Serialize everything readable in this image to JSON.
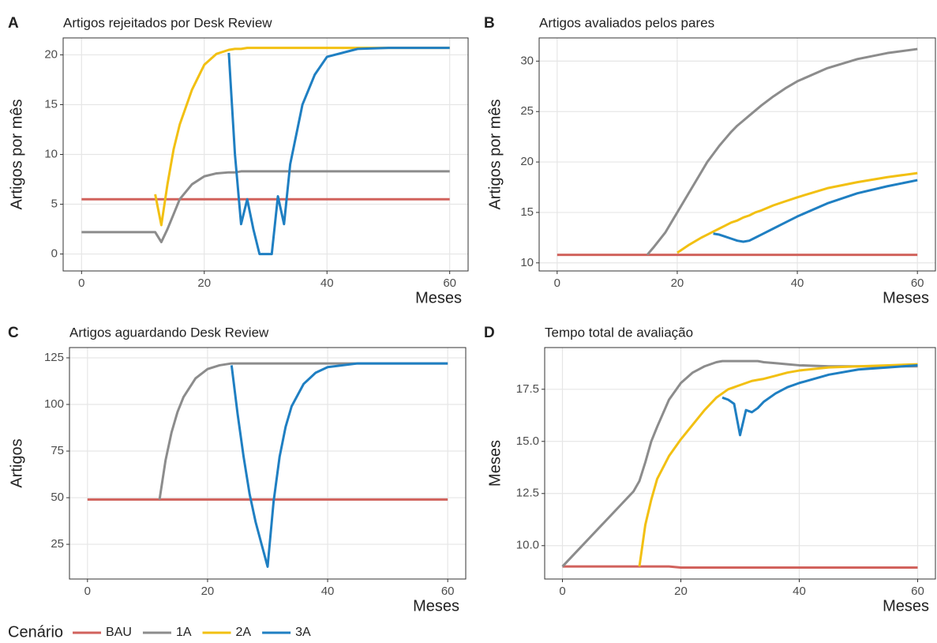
{
  "legend": {
    "title": "Cenário",
    "items": [
      {
        "name": "BAU",
        "color": "#d1625c"
      },
      {
        "name": "1A",
        "color": "#8c8c8c"
      },
      {
        "name": "2A",
        "color": "#f2c012"
      },
      {
        "name": "3A",
        "color": "#1f7fc2"
      }
    ]
  },
  "chart_data": [
    {
      "type": "line",
      "letter": "A",
      "title": "Artigos rejeitados por Desk Review",
      "xlabel": "Meses",
      "ylabel": "Artigos por mês",
      "x": [
        0,
        5,
        10,
        12,
        13,
        14,
        15,
        16,
        18,
        20,
        22,
        24,
        25,
        26,
        27,
        28,
        29,
        30,
        31,
        32,
        33,
        34,
        36,
        38,
        40,
        45,
        50,
        55,
        60
      ],
      "xlim": [
        -3,
        63
      ],
      "xticks": [
        0,
        20,
        40,
        60
      ],
      "ylim": [
        -1.7,
        21.7
      ],
      "yticks": [
        0,
        5,
        10,
        15,
        20
      ],
      "grid": true,
      "series": [
        {
          "name": "BAU",
          "color": "#d1625c",
          "values": [
            5.5,
            5.5,
            5.5,
            5.5,
            5.5,
            5.5,
            5.5,
            5.5,
            5.5,
            5.5,
            5.5,
            5.5,
            5.5,
            5.5,
            5.5,
            5.5,
            5.5,
            5.5,
            5.5,
            5.5,
            5.5,
            5.5,
            5.5,
            5.5,
            5.5,
            5.5,
            5.5,
            5.5,
            5.5
          ]
        },
        {
          "name": "1A",
          "color": "#8c8c8c",
          "values": [
            2.2,
            2.2,
            2.2,
            2.2,
            1.2,
            2.5,
            4,
            5.5,
            7,
            7.8,
            8.1,
            8.2,
            8.2,
            8.3,
            8.3,
            8.3,
            8.3,
            8.3,
            8.3,
            8.3,
            8.3,
            8.3,
            8.3,
            8.3,
            8.3,
            8.3,
            8.3,
            8.3,
            8.3
          ]
        },
        {
          "name": "2A",
          "color": "#f2c012",
          "values": [
            null,
            null,
            null,
            6,
            2.9,
            7,
            10.5,
            13,
            16.5,
            19,
            20.1,
            20.5,
            20.6,
            20.6,
            20.7,
            20.7,
            20.7,
            20.7,
            20.7,
            20.7,
            20.7,
            20.7,
            20.7,
            20.7,
            20.7,
            20.7,
            20.7,
            20.7,
            20.7
          ]
        },
        {
          "name": "3A",
          "color": "#1f7fc2",
          "values": [
            null,
            null,
            null,
            null,
            null,
            null,
            null,
            null,
            null,
            null,
            null,
            20.2,
            10,
            3,
            5.5,
            2.5,
            0,
            0,
            0,
            5.8,
            3,
            9,
            15,
            18,
            19.8,
            20.6,
            20.7,
            20.7,
            20.7
          ]
        }
      ]
    },
    {
      "type": "line",
      "letter": "B",
      "title": "Artigos avaliados pelos pares",
      "xlabel": "Meses",
      "ylabel": "Artigos por mês",
      "x": [
        0,
        5,
        10,
        12,
        13,
        14,
        15,
        16,
        18,
        20,
        22,
        24,
        25,
        26,
        27,
        28,
        29,
        30,
        31,
        32,
        33,
        34,
        36,
        38,
        40,
        45,
        50,
        55,
        60
      ],
      "xlim": [
        -3,
        63
      ],
      "xticks": [
        0,
        20,
        40,
        60
      ],
      "ylim": [
        9.2,
        32.3
      ],
      "yticks": [
        10,
        15,
        20,
        25,
        30
      ],
      "grid": true,
      "series": [
        {
          "name": "BAU",
          "color": "#d1625c",
          "values": [
            10.8,
            10.8,
            10.8,
            10.8,
            10.8,
            10.8,
            10.8,
            10.8,
            10.8,
            10.8,
            10.8,
            10.8,
            10.8,
            10.8,
            10.8,
            10.8,
            10.8,
            10.8,
            10.8,
            10.8,
            10.8,
            10.8,
            10.8,
            10.8,
            10.8,
            10.8,
            10.8,
            10.8,
            10.8
          ]
        },
        {
          "name": "1A",
          "color": "#8c8c8c",
          "values": [
            null,
            null,
            null,
            null,
            null,
            null,
            10.8,
            11.5,
            13,
            15,
            17,
            19,
            20,
            20.8,
            21.6,
            22.3,
            23,
            23.6,
            24.1,
            24.6,
            25.1,
            25.6,
            26.5,
            27.3,
            28,
            29.3,
            30.2,
            30.8,
            31.2
          ]
        },
        {
          "name": "2A",
          "color": "#f2c012",
          "values": [
            null,
            null,
            null,
            null,
            null,
            null,
            null,
            null,
            null,
            11,
            11.8,
            12.5,
            12.8,
            13.1,
            13.4,
            13.7,
            14,
            14.2,
            14.5,
            14.7,
            15,
            15.2,
            15.7,
            16.1,
            16.5,
            17.4,
            18,
            18.5,
            18.9
          ]
        },
        {
          "name": "3A",
          "color": "#1f7fc2",
          "values": [
            null,
            null,
            null,
            null,
            null,
            null,
            null,
            null,
            null,
            null,
            null,
            null,
            null,
            12.9,
            12.8,
            12.6,
            12.4,
            12.2,
            12.1,
            12.2,
            12.5,
            12.8,
            13.4,
            14,
            14.6,
            15.9,
            16.9,
            17.6,
            18.2
          ]
        }
      ]
    },
    {
      "type": "line",
      "letter": "C",
      "title": "Artigos aguardando Desk Review",
      "xlabel": "Meses",
      "ylabel": "Artigos",
      "x": [
        0,
        5,
        10,
        12,
        13,
        14,
        15,
        16,
        18,
        20,
        22,
        24,
        25,
        26,
        27,
        28,
        29,
        30,
        31,
        32,
        33,
        34,
        36,
        38,
        40,
        45,
        50,
        55,
        60
      ],
      "xlim": [
        -3,
        63
      ],
      "xticks": [
        0,
        20,
        40,
        60
      ],
      "ylim": [
        6.4,
        130.5
      ],
      "yticks": [
        25,
        50,
        75,
        100,
        125
      ],
      "grid": true,
      "series": [
        {
          "name": "BAU",
          "color": "#d1625c",
          "values": [
            49,
            49,
            49,
            49,
            49,
            49,
            49,
            49,
            49,
            49,
            49,
            49,
            49,
            49,
            49,
            49,
            49,
            49,
            49,
            49,
            49,
            49,
            49,
            49,
            49,
            49,
            49,
            49,
            49
          ]
        },
        {
          "name": "1A",
          "color": "#8c8c8c",
          "values": [
            null,
            null,
            null,
            49,
            70,
            85,
            96,
            104,
            114,
            119,
            121,
            122,
            122,
            122,
            122,
            122,
            122,
            122,
            122,
            122,
            122,
            122,
            122,
            122,
            122,
            122,
            122,
            122,
            122
          ]
        },
        {
          "name": "3A",
          "color": "#1f7fc2",
          "values": [
            null,
            null,
            null,
            null,
            null,
            null,
            null,
            null,
            null,
            null,
            null,
            121,
            95,
            72,
            52,
            37,
            25,
            13,
            48,
            72,
            88,
            99,
            111,
            117,
            120,
            122,
            122,
            122,
            122
          ]
        }
      ]
    },
    {
      "type": "line",
      "letter": "D",
      "title": "Tempo total de avaliação",
      "xlabel": "Meses",
      "ylabel": "Meses",
      "x": [
        0,
        5,
        10,
        12,
        13,
        14,
        15,
        16,
        18,
        20,
        22,
        24,
        25,
        26,
        27,
        28,
        29,
        30,
        31,
        32,
        33,
        34,
        36,
        38,
        40,
        45,
        50,
        55,
        60
      ],
      "xlim": [
        -3,
        63
      ],
      "xticks": [
        0,
        20,
        40,
        60
      ],
      "ylim": [
        8.4,
        19.5
      ],
      "yticks": [
        {
          "value": 10,
          "label": "10.0"
        },
        12.5,
        {
          "value": 15,
          "label": "15.0"
        },
        17.5
      ],
      "grid": true,
      "series": [
        {
          "name": "BAU",
          "color": "#d1625c",
          "values": [
            9,
            9,
            9,
            9,
            9,
            9,
            9,
            9,
            9,
            8.95,
            8.95,
            8.95,
            8.95,
            8.95,
            8.95,
            8.95,
            8.95,
            8.95,
            8.95,
            8.95,
            8.95,
            8.95,
            8.95,
            8.95,
            8.95,
            8.95,
            8.95,
            8.95,
            8.95
          ]
        },
        {
          "name": "1A",
          "color": "#8c8c8c",
          "values": [
            9,
            10.5,
            12,
            12.6,
            13.1,
            14,
            15,
            15.7,
            17,
            17.8,
            18.3,
            18.6,
            18.7,
            18.8,
            18.85,
            18.85,
            18.85,
            18.85,
            18.85,
            18.85,
            18.85,
            18.8,
            18.75,
            18.7,
            18.65,
            18.6,
            18.6,
            18.6,
            18.6
          ]
        },
        {
          "name": "2A",
          "color": "#f2c012",
          "values": [
            null,
            null,
            null,
            null,
            9,
            11,
            12.2,
            13.2,
            14.3,
            15.1,
            15.8,
            16.5,
            16.8,
            17.1,
            17.3,
            17.5,
            17.6,
            17.7,
            17.8,
            17.9,
            17.95,
            18,
            18.15,
            18.3,
            18.4,
            18.55,
            18.6,
            18.65,
            18.7
          ]
        },
        {
          "name": "3A",
          "color": "#1f7fc2",
          "values": [
            null,
            null,
            null,
            null,
            null,
            null,
            null,
            null,
            null,
            null,
            null,
            null,
            null,
            null,
            17.1,
            17,
            16.8,
            15.3,
            16.5,
            16.4,
            16.6,
            16.9,
            17.3,
            17.6,
            17.8,
            18.2,
            18.45,
            18.55,
            18.65
          ]
        }
      ]
    }
  ]
}
